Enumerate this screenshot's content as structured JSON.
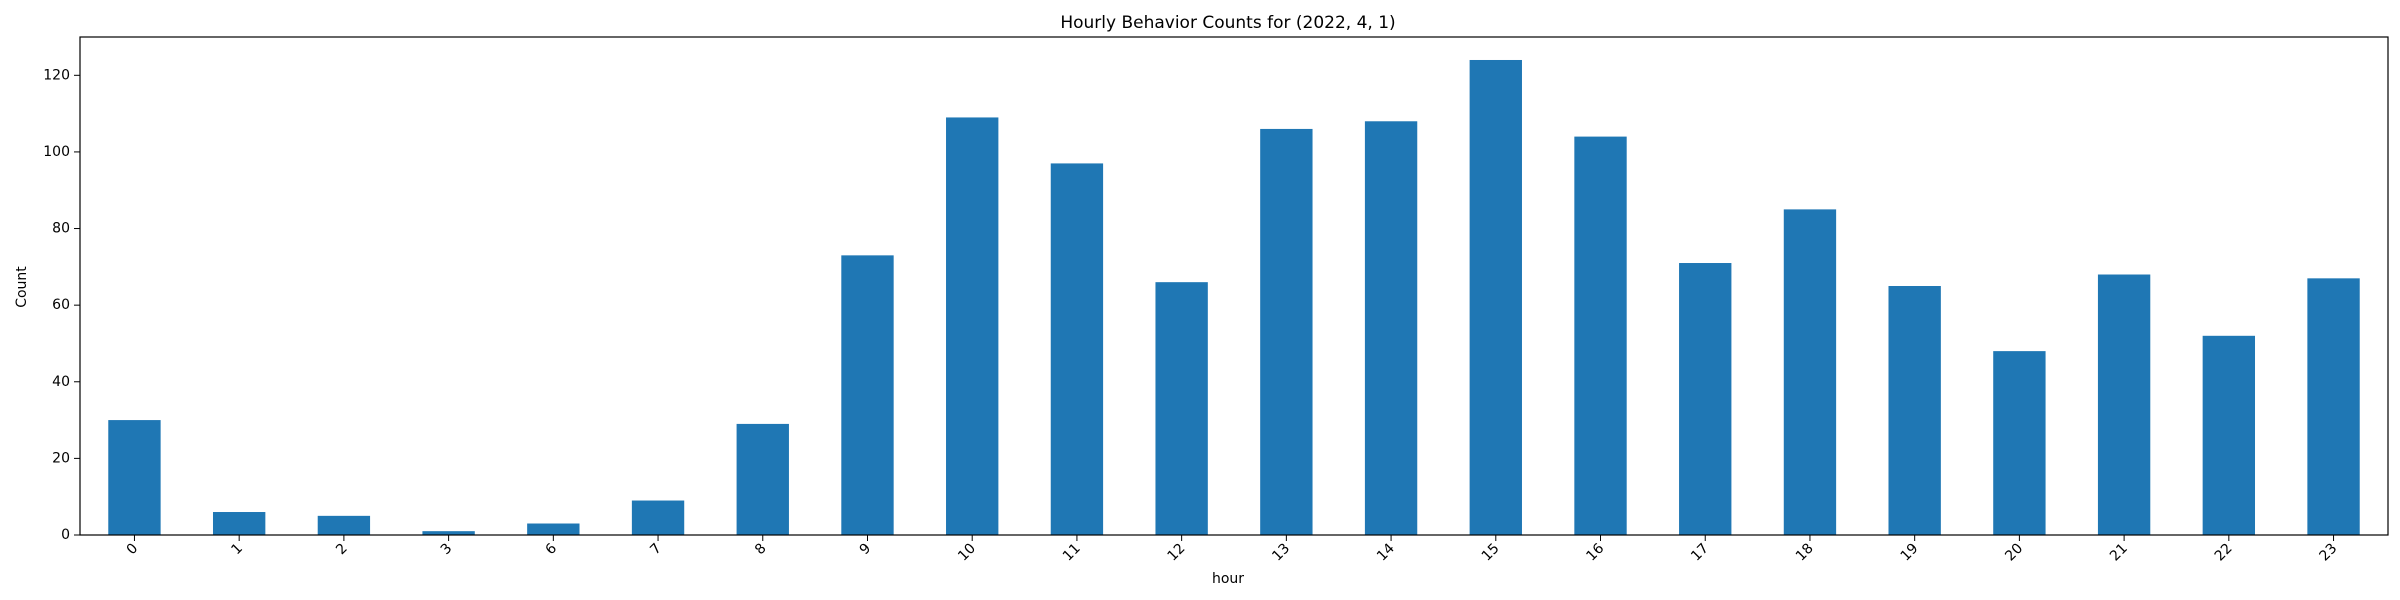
{
  "chart_data": {
    "type": "bar",
    "title": "Hourly Behavior Counts for (2022, 4, 1)",
    "xlabel": "hour",
    "ylabel": "Count",
    "categories": [
      "0",
      "1",
      "2",
      "3",
      "6",
      "7",
      "8",
      "9",
      "10",
      "11",
      "12",
      "13",
      "14",
      "15",
      "16",
      "17",
      "18",
      "19",
      "20",
      "21",
      "22",
      "23"
    ],
    "values": [
      30,
      6,
      5,
      1,
      3,
      9,
      29,
      73,
      109,
      97,
      66,
      106,
      108,
      124,
      104,
      71,
      85,
      65,
      48,
      68,
      52,
      67
    ],
    "ylim": [
      0,
      130
    ],
    "yticks": [
      0,
      20,
      40,
      60,
      80,
      100,
      120
    ],
    "bar_color": "#1f77b4",
    "grid": false,
    "legend": "none"
  }
}
